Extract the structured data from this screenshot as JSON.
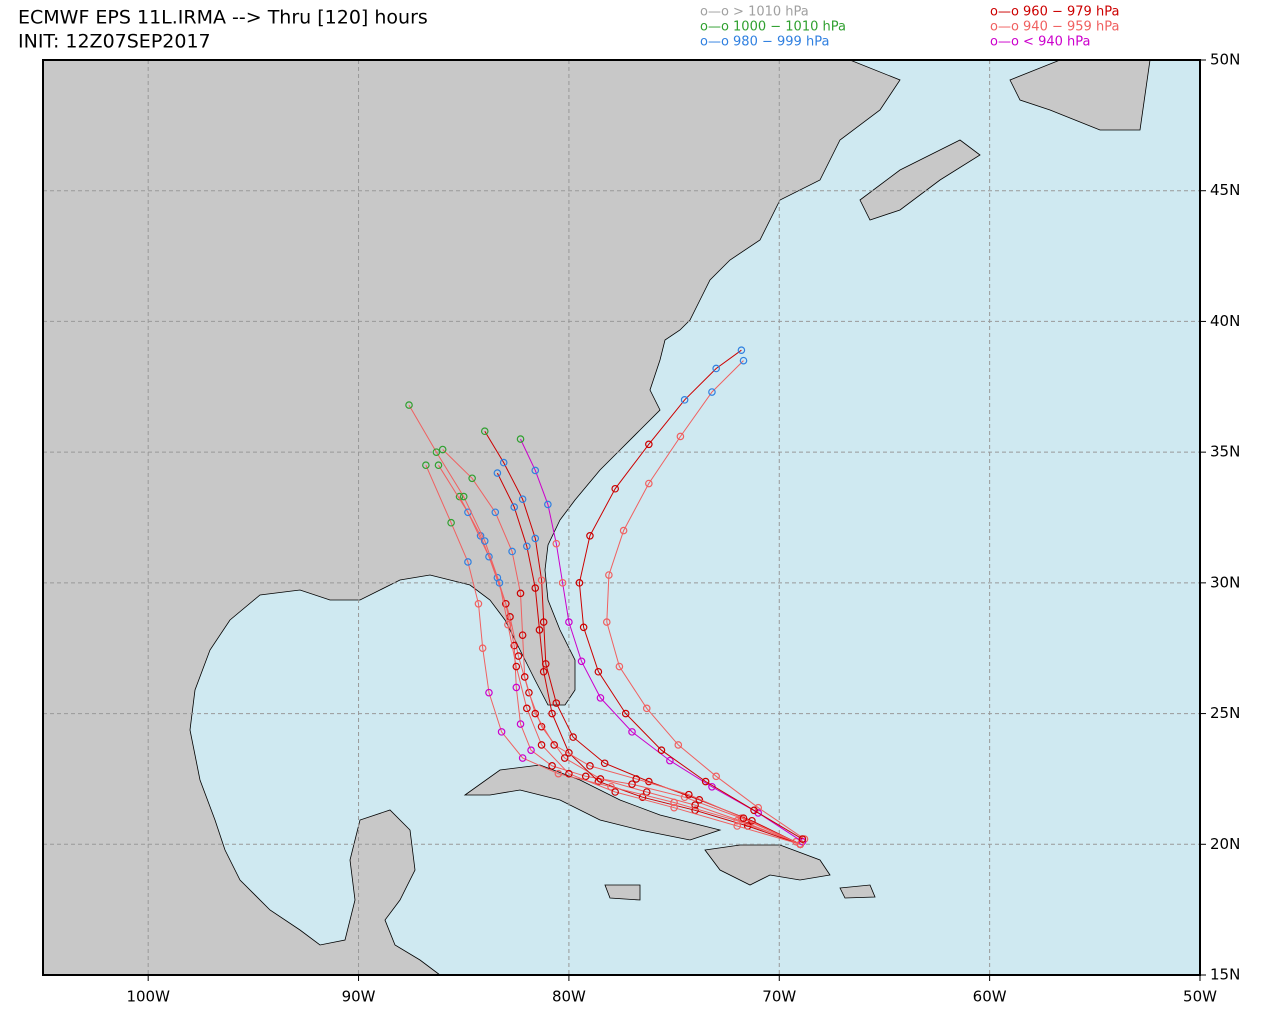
{
  "chart_data": {
    "type": "track-map",
    "title": "ECMWF EPS 11L.IRMA --> Thru [120] hours",
    "subtitle": "INIT: 12Z07SEP2017",
    "legend": [
      {
        "label": "o—o > 1010 hPa",
        "color": "#a0a0a0"
      },
      {
        "label": "o—o 1000 − 1010 hPa",
        "color": "#30a030"
      },
      {
        "label": "o—o 980 − 999 hPa",
        "color": "#3080e0"
      },
      {
        "label": "o—o 960 − 979 hPa",
        "color": "#cc0000"
      },
      {
        "label": "o—o 940 − 959 hPa",
        "color": "#f06060"
      },
      {
        "label": "o—o < 940 hPa",
        "color": "#cc00cc"
      }
    ],
    "xlim": [
      -105,
      -50
    ],
    "ylim": [
      15,
      50
    ],
    "xticks": [
      {
        "value": -100,
        "label": "100W"
      },
      {
        "value": -90,
        "label": "90W"
      },
      {
        "value": -80,
        "label": "80W"
      },
      {
        "value": -70,
        "label": "70W"
      },
      {
        "value": -60,
        "label": "60W"
      },
      {
        "value": -50,
        "label": "50W"
      }
    ],
    "yticks": [
      {
        "value": 15,
        "label": "15N"
      },
      {
        "value": 20,
        "label": "20N"
      },
      {
        "value": 25,
        "label": "25N"
      },
      {
        "value": 30,
        "label": "30N"
      },
      {
        "value": 35,
        "label": "35N"
      },
      {
        "value": 40,
        "label": "40N"
      },
      {
        "value": 45,
        "label": "45N"
      },
      {
        "value": 50,
        "label": "50N"
      }
    ],
    "grid": true,
    "tracks": [
      {
        "x": [
          -69,
          -71.5,
          -74,
          -76.3,
          -78.5,
          -80.2,
          -81.3,
          -81.9,
          -82.4,
          -82.8,
          -83.4,
          -84.2,
          -85.2
        ],
        "y": [
          20,
          20.8,
          21.5,
          22,
          22.5,
          23.3,
          24.5,
          25.8,
          27.2,
          28.7,
          30.2,
          31.8,
          33.3
        ],
        "colors": [
          "#f06060",
          "#f06060",
          "#cc0000",
          "#cc0000",
          "#cc0000",
          "#cc0000",
          "#cc0000",
          "#cc0000",
          "#cc0000",
          "#cc0000",
          "#3080e0",
          "#3080e0",
          "#30a030"
        ]
      },
      {
        "x": [
          -69,
          -71.8,
          -74.5,
          -77,
          -79.2,
          -80.8,
          -81.8,
          -82.3,
          -82.5,
          -82.6,
          -83,
          -83.8,
          -84.8,
          -86.2
        ],
        "y": [
          20,
          21,
          21.8,
          22.3,
          22.6,
          23,
          23.6,
          24.6,
          26,
          27.6,
          29.2,
          31,
          32.7,
          34.5
        ],
        "colors": [
          "#f06060",
          "#f06060",
          "#f06060",
          "#cc0000",
          "#cc0000",
          "#cc0000",
          "#cc00cc",
          "#cc00cc",
          "#cc00cc",
          "#cc0000",
          "#cc0000",
          "#3080e0",
          "#3080e0",
          "#30a030"
        ]
      },
      {
        "x": [
          -68.8,
          -71,
          -73,
          -74.8,
          -76.3,
          -77.6,
          -78.2,
          -78.1,
          -77.4,
          -76.2,
          -74.7,
          -73.2,
          -71.7
        ],
        "y": [
          20.2,
          21.4,
          22.6,
          23.8,
          25.2,
          26.8,
          28.5,
          30.3,
          32,
          33.8,
          35.6,
          37.3,
          38.5
        ],
        "colors": [
          "#f06060",
          "#f06060",
          "#f06060",
          "#f06060",
          "#f06060",
          "#f06060",
          "#f06060",
          "#f06060",
          "#f06060",
          "#f06060",
          "#f06060",
          "#3080e0",
          "#3080e0"
        ]
      },
      {
        "x": [
          -69,
          -71.5,
          -74,
          -76.5,
          -78.6,
          -80,
          -80.8,
          -81.2,
          -81.4,
          -81.6,
          -82,
          -82.6,
          -83.4
        ],
        "y": [
          20,
          20.7,
          21.3,
          21.8,
          22.4,
          23.5,
          25,
          26.6,
          28.2,
          29.8,
          31.4,
          32.9,
          34.2
        ],
        "colors": [
          "#cc0000",
          "#cc0000",
          "#cc0000",
          "#cc0000",
          "#cc0000",
          "#cc0000",
          "#cc0000",
          "#cc0000",
          "#cc0000",
          "#cc0000",
          "#3080e0",
          "#3080e0",
          "#3080e0"
        ]
      },
      {
        "x": [
          -69.2,
          -72,
          -75,
          -78,
          -80.5,
          -82.2,
          -83.2,
          -83.8,
          -84.1,
          -84.3,
          -84.8,
          -85.6,
          -86.8
        ],
        "y": [
          20.1,
          20.9,
          21.6,
          22.2,
          22.7,
          23.3,
          24.3,
          25.8,
          27.5,
          29.2,
          30.8,
          32.3,
          34.5
        ],
        "colors": [
          "#f06060",
          "#f06060",
          "#f06060",
          "#f06060",
          "#f06060",
          "#cc00cc",
          "#cc00cc",
          "#cc00cc",
          "#f06060",
          "#f06060",
          "#3080e0",
          "#30a030",
          "#30a030"
        ]
      },
      {
        "x": [
          -68.9,
          -71,
          -73.2,
          -75.2,
          -77,
          -78.5,
          -79.4,
          -80,
          -80.3,
          -80.6,
          -81,
          -81.6,
          -82.3
        ],
        "y": [
          20.1,
          21.2,
          22.2,
          23.2,
          24.3,
          25.6,
          27,
          28.5,
          30,
          31.5,
          33,
          34.3,
          35.5
        ],
        "colors": [
          "#cc00cc",
          "#cc00cc",
          "#cc00cc",
          "#cc00cc",
          "#cc00cc",
          "#cc00cc",
          "#cc00cc",
          "#cc00cc",
          "#f06060",
          "#f06060",
          "#3080e0",
          "#3080e0",
          "#30a030"
        ]
      },
      {
        "x": [
          -69,
          -71.3,
          -73.8,
          -76.2,
          -78.3,
          -79.8,
          -80.6,
          -81.1,
          -81.2,
          -81.3,
          -81.6,
          -82.2,
          -83.1,
          -84
        ],
        "y": [
          20,
          20.9,
          21.7,
          22.4,
          23.1,
          24.1,
          25.4,
          26.9,
          28.5,
          30.1,
          31.7,
          33.2,
          34.6,
          35.8
        ],
        "colors": [
          "#cc0000",
          "#cc0000",
          "#cc0000",
          "#cc0000",
          "#cc0000",
          "#cc0000",
          "#cc0000",
          "#cc0000",
          "#cc0000",
          "#f06060",
          "#3080e0",
          "#3080e0",
          "#3080e0",
          "#30a030"
        ]
      },
      {
        "x": [
          -69,
          -71.7,
          -74.3,
          -76.8,
          -79,
          -80.7,
          -81.6,
          -82.1,
          -82.2,
          -82.3,
          -82.7,
          -83.5,
          -84.6,
          -86
        ],
        "y": [
          20,
          21,
          21.9,
          22.5,
          23,
          23.8,
          25,
          26.4,
          28,
          29.6,
          31.2,
          32.7,
          34,
          35.1
        ],
        "colors": [
          "#f06060",
          "#cc0000",
          "#cc0000",
          "#cc0000",
          "#cc0000",
          "#cc0000",
          "#cc0000",
          "#cc0000",
          "#cc0000",
          "#cc0000",
          "#3080e0",
          "#3080e0",
          "#30a030",
          "#30a030"
        ]
      },
      {
        "x": [
          -69,
          -72,
          -75,
          -77.8,
          -80,
          -81.3,
          -82,
          -82.5,
          -82.9,
          -83.3,
          -84,
          -85,
          -86.3,
          -87.6
        ],
        "y": [
          20,
          20.7,
          21.4,
          22,
          22.7,
          23.8,
          25.2,
          26.8,
          28.4,
          30,
          31.6,
          33.3,
          35,
          36.8
        ],
        "colors": [
          "#f06060",
          "#f06060",
          "#f06060",
          "#cc0000",
          "#cc0000",
          "#cc0000",
          "#cc0000",
          "#cc0000",
          "#f06060",
          "#3080e0",
          "#3080e0",
          "#30a030",
          "#30a030",
          "#30a030"
        ]
      },
      {
        "x": [
          -68.9,
          -71.2,
          -73.5,
          -75.6,
          -77.3,
          -78.6,
          -79.3,
          -79.5,
          -79,
          -77.8,
          -76.2,
          -74.5,
          -73,
          -71.8
        ],
        "y": [
          20.2,
          21.3,
          22.4,
          23.6,
          25,
          26.6,
          28.3,
          30,
          31.8,
          33.6,
          35.3,
          37,
          38.2,
          38.9
        ],
        "colors": [
          "#cc0000",
          "#cc0000",
          "#cc0000",
          "#cc0000",
          "#cc0000",
          "#cc0000",
          "#cc0000",
          "#cc0000",
          "#cc0000",
          "#cc0000",
          "#cc0000",
          "#3080e0",
          "#3080e0",
          "#3080e0"
        ]
      }
    ]
  }
}
